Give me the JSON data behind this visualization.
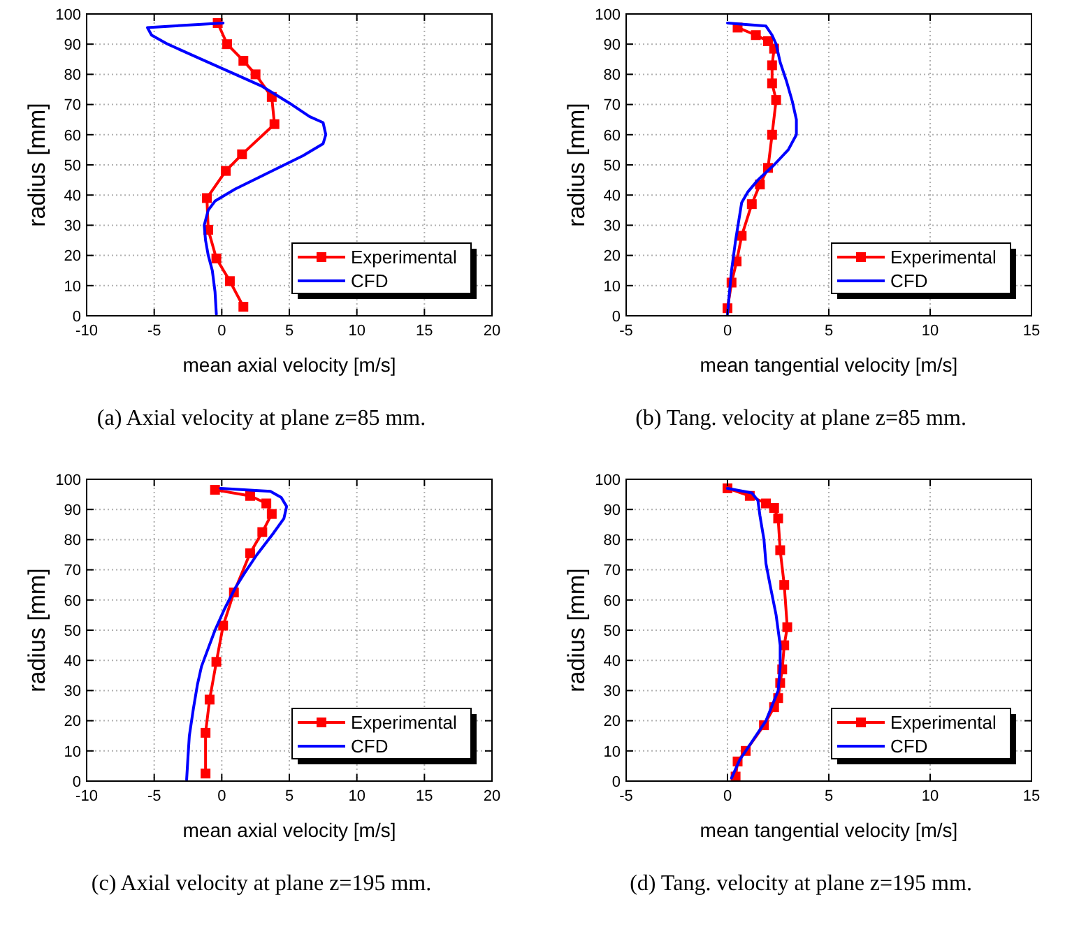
{
  "chart_data": [
    {
      "type": "line",
      "title": "(a) Axial velocity at plane z=85 mm.",
      "xlabel": "mean axial velocity [m/s]",
      "ylabel": "radius [mm]",
      "xlim": [
        -10,
        20
      ],
      "xticks": [
        -10,
        -5,
        0,
        5,
        10,
        15,
        20
      ],
      "ylim": [
        0,
        100
      ],
      "yticks": [
        0,
        10,
        20,
        30,
        40,
        50,
        60,
        70,
        80,
        90,
        100
      ],
      "grid": true,
      "legend": "bottom right",
      "series": [
        {
          "name": "Experimental",
          "color": "#ff0000",
          "marker": "square",
          "x": [
            -0.3,
            0.4,
            1.6,
            2.5,
            3.7,
            3.9,
            1.5,
            0.3,
            -1.1,
            -1.0,
            -0.4,
            0.6,
            1.6
          ],
          "values": [
            97,
            90,
            84.5,
            80,
            72.5,
            63.5,
            53.5,
            48,
            39,
            28.5,
            19,
            11.5,
            3
          ]
        },
        {
          "name": "CFD",
          "color": "#0000ff",
          "marker": "none",
          "x": [
            0.1,
            -5.5,
            -5.2,
            -4,
            -1.5,
            1,
            3,
            5,
            6.5,
            7.5,
            7.7,
            7.5,
            6,
            3.5,
            1,
            -0.5,
            -1,
            -1.3,
            -1.2,
            -1,
            -0.7,
            -0.5,
            -0.4
          ],
          "values": [
            97,
            95.5,
            93,
            90,
            85,
            80,
            76,
            70.5,
            66,
            64,
            60,
            57,
            53,
            47.5,
            42,
            38,
            35,
            30,
            25,
            20,
            15,
            8,
            0.5
          ]
        }
      ]
    },
    {
      "type": "line",
      "title": "(b) Tang. velocity at plane z=85 mm.",
      "xlabel": "mean tangential velocity [m/s]",
      "ylabel": "radius [mm]",
      "xlim": [
        -5,
        15
      ],
      "xticks": [
        -5,
        0,
        5,
        10,
        15
      ],
      "ylim": [
        0,
        100
      ],
      "yticks": [
        0,
        10,
        20,
        30,
        40,
        50,
        60,
        70,
        80,
        90,
        100
      ],
      "grid": true,
      "legend": "bottom right",
      "series": [
        {
          "name": "Experimental",
          "color": "#ff0000",
          "marker": "square",
          "x": [
            0.5,
            1.4,
            2.0,
            2.3,
            2.2,
            2.2,
            2.4,
            2.2,
            2.0,
            1.6,
            1.2,
            0.7,
            0.45,
            0.2,
            0
          ],
          "values": [
            95.5,
            93,
            91,
            88.5,
            83,
            77,
            71.5,
            60,
            49,
            43.5,
            37,
            26.5,
            18,
            11,
            2.5
          ]
        },
        {
          "name": "CFD",
          "color": "#0000ff",
          "marker": "none",
          "x": [
            0,
            1.9,
            2.2,
            2.4,
            2.6,
            2.9,
            3.2,
            3.4,
            3.4,
            3.0,
            2.3,
            1.5,
            1.0,
            0.7,
            0.4,
            0.2,
            0.1,
            0
          ],
          "values": [
            97,
            96,
            93,
            90,
            84,
            78,
            71,
            65,
            60,
            55,
            50,
            45,
            41,
            37.5,
            25,
            15,
            8,
            0.5
          ]
        }
      ]
    },
    {
      "type": "line",
      "title": "(c) Axial velocity at plane z=195 mm.",
      "xlabel": "mean axial velocity [m/s]",
      "ylabel": "radius [mm]",
      "xlim": [
        -10,
        20
      ],
      "xticks": [
        -10,
        -5,
        0,
        5,
        10,
        15,
        20
      ],
      "ylim": [
        0,
        100
      ],
      "yticks": [
        0,
        10,
        20,
        30,
        40,
        50,
        60,
        70,
        80,
        90,
        100
      ],
      "grid": true,
      "legend": "bottom right",
      "series": [
        {
          "name": "Experimental",
          "color": "#ff0000",
          "marker": "square",
          "x": [
            -0.5,
            2.1,
            3.3,
            3.7,
            3.0,
            2.1,
            0.9,
            0.1,
            -0.4,
            -0.9,
            -1.2,
            -1.2
          ],
          "values": [
            96.5,
            94.5,
            92,
            88.5,
            82.5,
            75.5,
            62.5,
            51.5,
            39.5,
            27,
            16,
            2.5
          ]
        },
        {
          "name": "CFD",
          "color": "#0000ff",
          "marker": "none",
          "x": [
            -0.1,
            3.6,
            4.4,
            4.8,
            4.6,
            3.8,
            2.6,
            1.7,
            1.0,
            0.2,
            -0.5,
            -1.0,
            -1.5,
            -1.8,
            -2.1,
            -2.4,
            -2.5,
            -2.6
          ],
          "values": [
            97,
            96,
            94,
            91,
            87,
            82,
            75,
            69,
            64,
            57,
            50,
            44,
            38,
            32,
            24,
            15,
            8,
            0.5
          ]
        }
      ]
    },
    {
      "type": "line",
      "title": "(d) Tang. velocity at plane z=195 mm.",
      "xlabel": "mean tangential velocity [m/s]",
      "ylabel": "radius [mm]",
      "xlim": [
        -5,
        15
      ],
      "xticks": [
        -5,
        0,
        5,
        10,
        15
      ],
      "ylim": [
        0,
        100
      ],
      "yticks": [
        0,
        10,
        20,
        30,
        40,
        50,
        60,
        70,
        80,
        90,
        100
      ],
      "grid": true,
      "legend": "bottom right",
      "series": [
        {
          "name": "Experimental",
          "color": "#ff0000",
          "marker": "square",
          "x": [
            0,
            1.1,
            1.9,
            2.3,
            2.5,
            2.6,
            2.8,
            2.95,
            2.8,
            2.7,
            2.6,
            2.5,
            2.3,
            1.8,
            0.9,
            0.5,
            0.4
          ],
          "values": [
            97,
            94.5,
            92,
            90.5,
            87,
            76.5,
            65,
            51,
            45,
            37,
            32.5,
            27.5,
            24.5,
            18.5,
            10,
            6.5,
            1.5
          ]
        },
        {
          "name": "CFD",
          "color": "#0000ff",
          "marker": "none",
          "x": [
            0,
            1.2,
            1.5,
            1.6,
            1.8,
            1.9,
            2.1,
            2.4,
            2.6,
            2.6,
            2.5,
            2.2,
            1.9,
            1.3,
            0.6,
            0.2
          ],
          "values": [
            97,
            95.5,
            93,
            88,
            80,
            72,
            65,
            55,
            45,
            38,
            30,
            25,
            20,
            14,
            7,
            1
          ]
        }
      ]
    }
  ]
}
